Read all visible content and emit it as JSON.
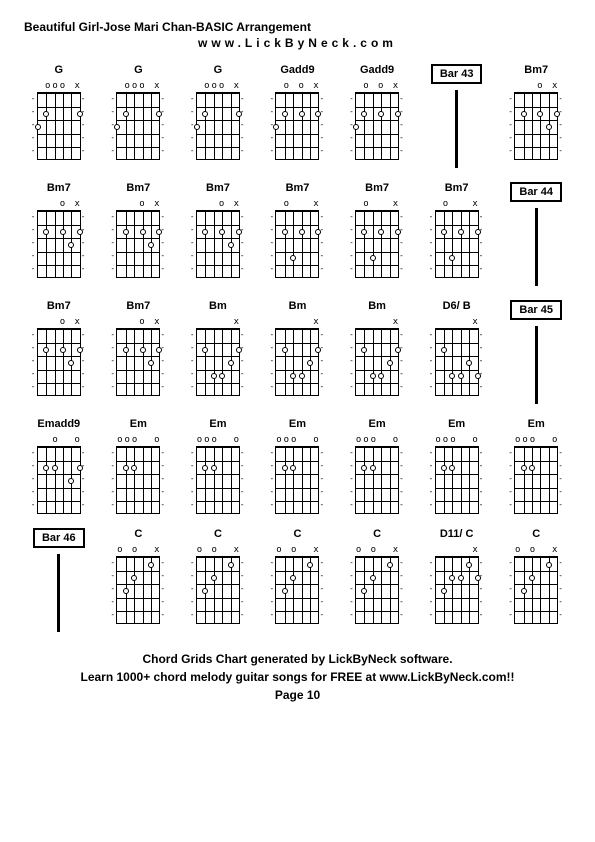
{
  "header": "Beautiful Girl-Jose Mari Chan-BASIC Arrangement",
  "subheader": "www.LickByNeck.com",
  "footer_line1": "Chord Grids Chart generated by LickByNeck software.",
  "footer_line2": "Learn 1000+ chord melody guitar songs for FREE at www.LickByNeck.com!!",
  "page_label": "Page 10",
  "diagram_style": {
    "fretboard_width": 44,
    "fretboard_height": 68,
    "num_frets": 5,
    "num_strings": 6,
    "dot_diameter": 6,
    "border_color": "#000000",
    "bg_color": "#ffffff",
    "font_size_name": 11,
    "font_size_mark": 9
  },
  "cells": [
    {
      "type": "chord",
      "name": "G",
      "muted": [
        "x",
        "",
        "o",
        "o",
        "o",
        ""
      ],
      "dots": [
        [
          4,
          2
        ],
        [
          0,
          2
        ],
        [
          5,
          3
        ]
      ],
      "ticks": [
        0,
        1,
        2,
        3,
        4
      ]
    },
    {
      "type": "chord",
      "name": "G",
      "muted": [
        "x",
        "",
        "o",
        "o",
        "o",
        ""
      ],
      "dots": [
        [
          4,
          2
        ],
        [
          0,
          2
        ],
        [
          5,
          3
        ]
      ],
      "ticks": [
        0,
        1,
        2,
        3,
        4
      ]
    },
    {
      "type": "chord",
      "name": "G",
      "muted": [
        "x",
        "",
        "o",
        "o",
        "o",
        ""
      ],
      "dots": [
        [
          4,
          2
        ],
        [
          0,
          2
        ],
        [
          5,
          3
        ]
      ],
      "ticks": [
        0,
        1,
        2,
        3,
        4
      ]
    },
    {
      "type": "chord",
      "name": "Gadd9",
      "muted": [
        "x",
        "",
        "o",
        "",
        "o",
        ""
      ],
      "dots": [
        [
          4,
          2
        ],
        [
          2,
          2
        ],
        [
          0,
          2
        ],
        [
          5,
          3
        ]
      ],
      "ticks": [
        0,
        1,
        2,
        3,
        4
      ]
    },
    {
      "type": "chord",
      "name": "Gadd9",
      "muted": [
        "x",
        "",
        "o",
        "",
        "o",
        ""
      ],
      "dots": [
        [
          4,
          2
        ],
        [
          2,
          2
        ],
        [
          0,
          2
        ],
        [
          5,
          3
        ]
      ],
      "ticks": [
        0,
        1,
        2,
        3,
        4
      ]
    },
    {
      "type": "bar",
      "label": "Bar 43"
    },
    {
      "type": "chord",
      "name": "Bm7",
      "muted": [
        "x",
        "",
        "o",
        "",
        "",
        ""
      ],
      "dots": [
        [
          4,
          2
        ],
        [
          2,
          2
        ],
        [
          1,
          3
        ],
        [
          0,
          2
        ]
      ],
      "ticks": [
        0,
        1,
        2,
        3,
        4
      ]
    },
    {
      "type": "chord",
      "name": "Bm7",
      "muted": [
        "x",
        "",
        "o",
        "",
        "",
        ""
      ],
      "dots": [
        [
          4,
          2
        ],
        [
          2,
          2
        ],
        [
          1,
          3
        ],
        [
          0,
          2
        ]
      ],
      "ticks": [
        0,
        1,
        2,
        3,
        4
      ]
    },
    {
      "type": "chord",
      "name": "Bm7",
      "muted": [
        "x",
        "",
        "o",
        "",
        "",
        ""
      ],
      "dots": [
        [
          4,
          2
        ],
        [
          2,
          2
        ],
        [
          1,
          3
        ],
        [
          0,
          2
        ]
      ],
      "ticks": [
        0,
        1,
        2,
        3,
        4
      ]
    },
    {
      "type": "chord",
      "name": "Bm7",
      "muted": [
        "x",
        "",
        "o",
        "",
        "",
        ""
      ],
      "dots": [
        [
          4,
          2
        ],
        [
          2,
          2
        ],
        [
          1,
          3
        ],
        [
          0,
          2
        ]
      ],
      "ticks": [
        0,
        1,
        2,
        3,
        4
      ]
    },
    {
      "type": "chord",
      "name": "Bm7",
      "muted": [
        "x",
        "",
        "",
        "",
        "o",
        ""
      ],
      "dots": [
        [
          4,
          2
        ],
        [
          3,
          4
        ],
        [
          2,
          2
        ],
        [
          0,
          2
        ]
      ],
      "ticks": [
        0,
        1,
        2,
        3,
        4
      ]
    },
    {
      "type": "chord",
      "name": "Bm7",
      "muted": [
        "x",
        "",
        "",
        "",
        "o",
        ""
      ],
      "dots": [
        [
          4,
          2
        ],
        [
          3,
          4
        ],
        [
          2,
          2
        ],
        [
          0,
          2
        ]
      ],
      "ticks": [
        0,
        1,
        2,
        3,
        4
      ]
    },
    {
      "type": "chord",
      "name": "Bm7",
      "muted": [
        "x",
        "",
        "",
        "",
        "o",
        ""
      ],
      "dots": [
        [
          4,
          2
        ],
        [
          3,
          4
        ],
        [
          2,
          2
        ],
        [
          0,
          2
        ]
      ],
      "ticks": [
        0,
        1,
        2,
        3,
        4
      ]
    },
    {
      "type": "bar",
      "label": "Bar 44"
    },
    {
      "type": "chord",
      "name": "Bm7",
      "muted": [
        "x",
        "",
        "o",
        "",
        "",
        ""
      ],
      "dots": [
        [
          4,
          2
        ],
        [
          2,
          2
        ],
        [
          1,
          3
        ],
        [
          0,
          2
        ]
      ],
      "ticks": [
        0,
        1,
        2,
        3,
        4
      ]
    },
    {
      "type": "chord",
      "name": "Bm7",
      "muted": [
        "x",
        "",
        "o",
        "",
        "",
        ""
      ],
      "dots": [
        [
          4,
          2
        ],
        [
          2,
          2
        ],
        [
          1,
          3
        ],
        [
          0,
          2
        ]
      ],
      "ticks": [
        0,
        1,
        2,
        3,
        4
      ]
    },
    {
      "type": "chord",
      "name": "Bm",
      "muted": [
        "x",
        "",
        "",
        "",
        "",
        ""
      ],
      "dots": [
        [
          4,
          2
        ],
        [
          3,
          4
        ],
        [
          2,
          4
        ],
        [
          1,
          3
        ],
        [
          0,
          2
        ]
      ],
      "ticks": [
        0,
        1,
        2,
        3,
        4
      ]
    },
    {
      "type": "chord",
      "name": "Bm",
      "muted": [
        "x",
        "",
        "",
        "",
        "",
        ""
      ],
      "dots": [
        [
          4,
          2
        ],
        [
          3,
          4
        ],
        [
          2,
          4
        ],
        [
          1,
          3
        ],
        [
          0,
          2
        ]
      ],
      "ticks": [
        0,
        1,
        2,
        3,
        4
      ]
    },
    {
      "type": "chord",
      "name": "Bm",
      "muted": [
        "x",
        "",
        "",
        "",
        "",
        ""
      ],
      "dots": [
        [
          4,
          2
        ],
        [
          3,
          4
        ],
        [
          2,
          4
        ],
        [
          1,
          3
        ],
        [
          0,
          2
        ]
      ],
      "ticks": [
        0,
        1,
        2,
        3,
        4
      ]
    },
    {
      "type": "chord",
      "name": "D6/ B",
      "muted": [
        "x",
        "",
        "",
        "",
        "",
        ""
      ],
      "dots": [
        [
          4,
          2
        ],
        [
          3,
          4
        ],
        [
          2,
          4
        ],
        [
          1,
          3
        ],
        [
          0,
          4
        ]
      ],
      "ticks": [
        0,
        1,
        2,
        3,
        4
      ]
    },
    {
      "type": "bar",
      "label": "Bar 45"
    },
    {
      "type": "chord",
      "name": "Emadd9",
      "muted": [
        "o",
        "",
        "",
        "o",
        "",
        ""
      ],
      "dots": [
        [
          4,
          2
        ],
        [
          3,
          2
        ],
        [
          1,
          3
        ],
        [
          0,
          2
        ]
      ],
      "ticks": [
        0,
        1,
        2,
        3,
        4
      ]
    },
    {
      "type": "chord",
      "name": "Em",
      "muted": [
        "o",
        "",
        "",
        "o",
        "o",
        "o"
      ],
      "dots": [
        [
          4,
          2
        ],
        [
          3,
          2
        ]
      ],
      "ticks": [
        0,
        1,
        2,
        3,
        4
      ]
    },
    {
      "type": "chord",
      "name": "Em",
      "muted": [
        "o",
        "",
        "",
        "o",
        "o",
        "o"
      ],
      "dots": [
        [
          4,
          2
        ],
        [
          3,
          2
        ]
      ],
      "ticks": [
        0,
        1,
        2,
        3,
        4
      ]
    },
    {
      "type": "chord",
      "name": "Em",
      "muted": [
        "o",
        "",
        "",
        "o",
        "o",
        "o"
      ],
      "dots": [
        [
          4,
          2
        ],
        [
          3,
          2
        ]
      ],
      "ticks": [
        0,
        1,
        2,
        3,
        4
      ]
    },
    {
      "type": "chord",
      "name": "Em",
      "muted": [
        "o",
        "",
        "",
        "o",
        "o",
        "o"
      ],
      "dots": [
        [
          4,
          2
        ],
        [
          3,
          2
        ]
      ],
      "ticks": [
        0,
        1,
        2,
        3,
        4
      ]
    },
    {
      "type": "chord",
      "name": "Em",
      "muted": [
        "o",
        "",
        "",
        "o",
        "o",
        "o"
      ],
      "dots": [
        [
          4,
          2
        ],
        [
          3,
          2
        ]
      ],
      "ticks": [
        0,
        1,
        2,
        3,
        4
      ]
    },
    {
      "type": "chord",
      "name": "Em",
      "muted": [
        "o",
        "",
        "",
        "o",
        "o",
        "o"
      ],
      "dots": [
        [
          4,
          2
        ],
        [
          3,
          2
        ]
      ],
      "ticks": [
        0,
        1,
        2,
        3,
        4
      ]
    },
    {
      "type": "bar",
      "label": "Bar 46"
    },
    {
      "type": "chord",
      "name": "C",
      "muted": [
        "x",
        "",
        "",
        "o",
        "",
        "o"
      ],
      "dots": [
        [
          4,
          3
        ],
        [
          3,
          2
        ],
        [
          1,
          1
        ]
      ],
      "ticks": [
        0,
        1,
        2,
        3,
        4
      ]
    },
    {
      "type": "chord",
      "name": "C",
      "muted": [
        "x",
        "",
        "",
        "o",
        "",
        "o"
      ],
      "dots": [
        [
          4,
          3
        ],
        [
          3,
          2
        ],
        [
          1,
          1
        ]
      ],
      "ticks": [
        0,
        1,
        2,
        3,
        4
      ]
    },
    {
      "type": "chord",
      "name": "C",
      "muted": [
        "x",
        "",
        "",
        "o",
        "",
        "o"
      ],
      "dots": [
        [
          4,
          3
        ],
        [
          3,
          2
        ],
        [
          1,
          1
        ]
      ],
      "ticks": [
        0,
        1,
        2,
        3,
        4
      ]
    },
    {
      "type": "chord",
      "name": "C",
      "muted": [
        "x",
        "",
        "",
        "o",
        "",
        "o"
      ],
      "dots": [
        [
          4,
          3
        ],
        [
          3,
          2
        ],
        [
          1,
          1
        ]
      ],
      "ticks": [
        0,
        1,
        2,
        3,
        4
      ]
    },
    {
      "type": "chord",
      "name": "D11/ C",
      "muted": [
        "x",
        "",
        "",
        "",
        "",
        ""
      ],
      "dots": [
        [
          4,
          3
        ],
        [
          3,
          2
        ],
        [
          2,
          2
        ],
        [
          1,
          1
        ],
        [
          0,
          2
        ]
      ],
      "ticks": [
        0,
        1,
        2,
        3,
        4
      ]
    },
    {
      "type": "chord",
      "name": "C",
      "muted": [
        "x",
        "",
        "",
        "o",
        "",
        "o"
      ],
      "dots": [
        [
          4,
          3
        ],
        [
          3,
          2
        ],
        [
          1,
          1
        ]
      ],
      "ticks": [
        0,
        1,
        2,
        3,
        4
      ]
    }
  ]
}
